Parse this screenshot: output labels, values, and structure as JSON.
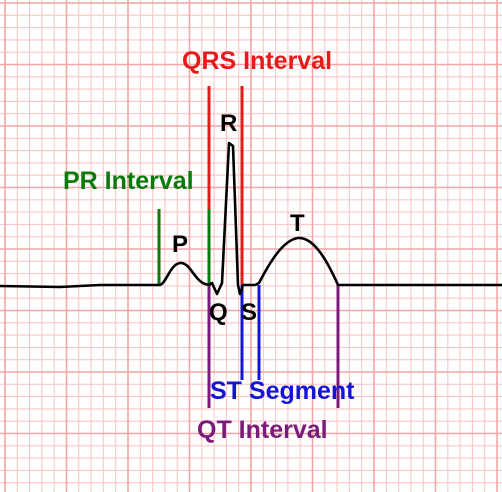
{
  "diagram": {
    "colors": {
      "background": "#ffffff",
      "grid_minor": "#f8c8c8",
      "grid_major": "#f2a6a6",
      "trace": "#000000",
      "pr_interval": "#0a7a0a",
      "qrs_interval": "#e31b1b",
      "st_segment": "#1414d6",
      "qt_interval": "#7a1a7a",
      "wave_labels": "#000000"
    },
    "interval_labels": {
      "pr": "PR Interval",
      "qrs": "QRS Interval",
      "st": "ST Segment",
      "qt": "QT Interval"
    },
    "wave_labels": {
      "p": "P",
      "q": "Q",
      "r": "R",
      "s": "S",
      "t": "T"
    }
  }
}
